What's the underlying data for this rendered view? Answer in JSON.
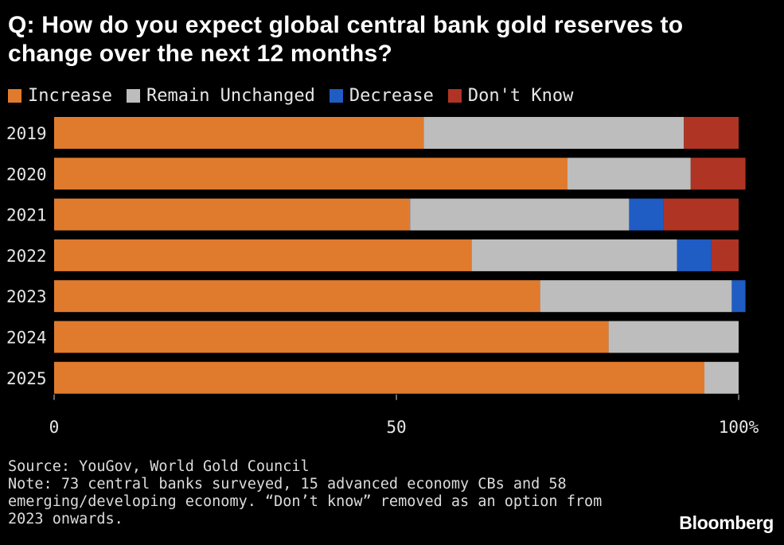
{
  "title": "Q: How do you expect global central bank gold reserves to change over the next 12 months?",
  "legend": [
    {
      "label": "Increase",
      "color": "#e07b2e"
    },
    {
      "label": "Remain Unchanged",
      "color": "#bdbdbd"
    },
    {
      "label": "Decrease",
      "color": "#1f5cc4"
    },
    {
      "label": "Don't Know",
      "color": "#b03424"
    }
  ],
  "chart_data": {
    "type": "bar",
    "orientation": "horizontal",
    "stacked": true,
    "categories": [
      "2019",
      "2020",
      "2021",
      "2022",
      "2023",
      "2024",
      "2025"
    ],
    "series": [
      {
        "name": "Increase",
        "color": "#e07b2e",
        "values": [
          54,
          75,
          52,
          61,
          71,
          81,
          95
        ]
      },
      {
        "name": "Remain Unchanged",
        "color": "#bdbdbd",
        "values": [
          38,
          18,
          32,
          30,
          28,
          19,
          5
        ]
      },
      {
        "name": "Decrease",
        "color": "#1f5cc4",
        "values": [
          0,
          0,
          5,
          5,
          2,
          0,
          0
        ]
      },
      {
        "name": "Don't Know",
        "color": "#b03424",
        "values": [
          8,
          8,
          11,
          4,
          0,
          0,
          0
        ]
      }
    ],
    "xticks": [
      {
        "value": 0,
        "label": "0"
      },
      {
        "value": 50,
        "label": "50"
      },
      {
        "value": 100,
        "label": "100%"
      }
    ],
    "xlim": [
      0,
      100
    ],
    "grid": false,
    "legend_position": "top-left"
  },
  "footer": {
    "source": "Source: YouGov, World Gold Council",
    "note_lines": [
      "Note: 73 central banks surveyed, 15 advanced economy CBs and 58",
      "emerging/developing economy. “Don’t know” removed as an option from",
      "2023 onwards."
    ]
  },
  "brand": "Bloomberg"
}
